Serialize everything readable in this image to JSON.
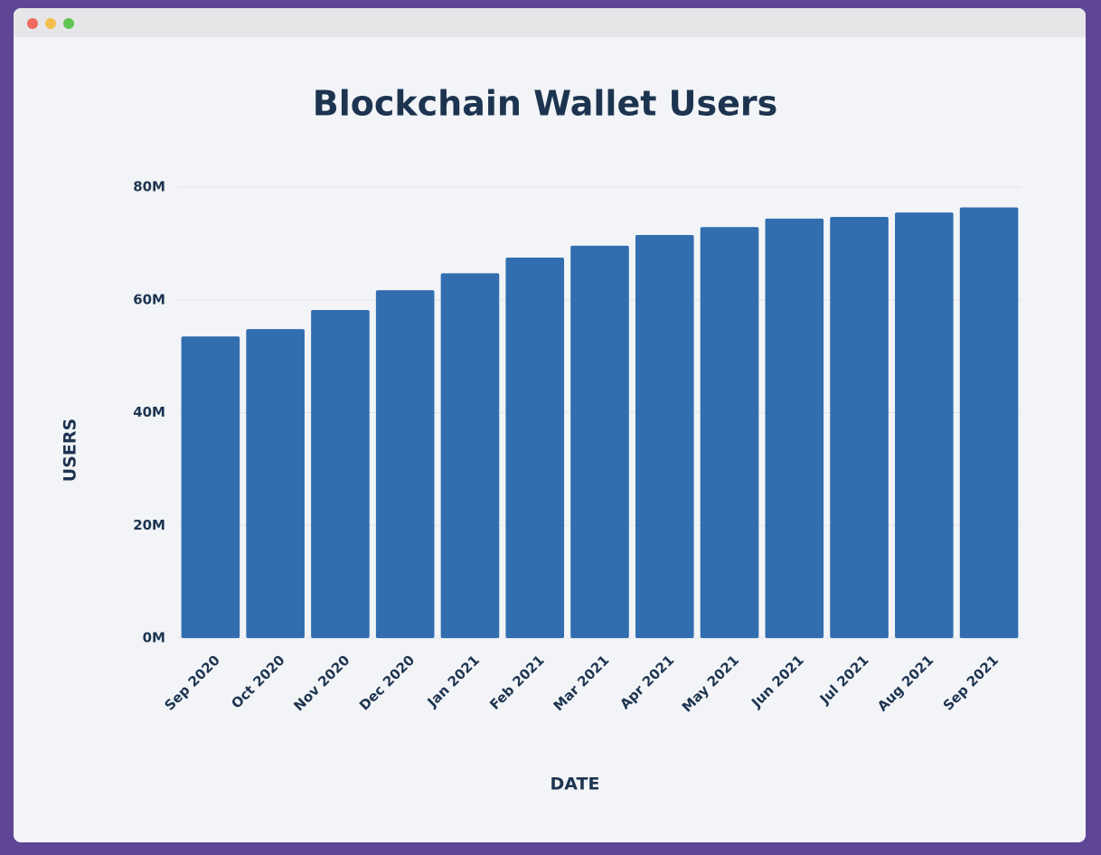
{
  "chart_data": {
    "type": "bar",
    "title": "Blockchain Wallet Users",
    "x_label": "DATE",
    "y_label": "USERS",
    "categories": [
      "Sep 2020",
      "Oct 2020",
      "Nov 2020",
      "Dec 2020",
      "Jan 2021",
      "Feb 2021",
      "Mar 2021",
      "Apr 2021",
      "May 2021",
      "Jun 2021",
      "Jul 2021",
      "Aug 2021",
      "Sep 2021"
    ],
    "values": [
      53.5,
      54.8,
      58.2,
      61.7,
      64.7,
      67.5,
      69.6,
      71.5,
      72.9,
      74.4,
      74.7,
      75.5,
      76.4
    ],
    "color": "#316daf",
    "ylim": [
      0,
      80
    ],
    "yticks": [
      {
        "value": 0,
        "label": "0M"
      },
      {
        "value": 20,
        "label": "20M"
      },
      {
        "value": 40,
        "label": "40M"
      },
      {
        "value": 60,
        "label": "60M"
      },
      {
        "value": 80,
        "label": "80M"
      }
    ],
    "grid": true
  }
}
